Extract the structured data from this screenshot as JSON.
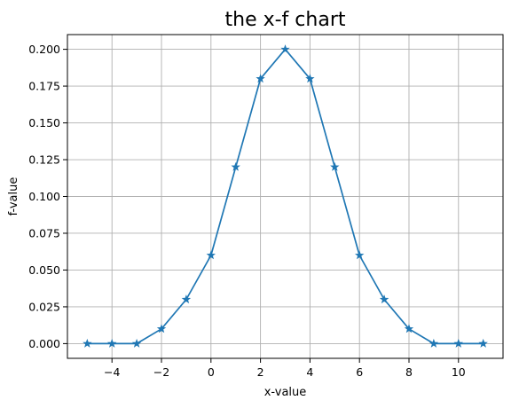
{
  "chart_data": {
    "type": "line",
    "title": "the x-f chart",
    "xlabel": "x-value",
    "ylabel": "f-value",
    "xlim": [
      -5.8,
      11.8
    ],
    "ylim": [
      -0.01,
      0.21
    ],
    "x_ticks": [
      -4,
      -2,
      0,
      2,
      4,
      6,
      8,
      10
    ],
    "x_tick_labels": [
      "−4",
      "−2",
      "0",
      "2",
      "4",
      "6",
      "8",
      "10"
    ],
    "y_ticks": [
      0.0,
      0.025,
      0.05,
      0.075,
      0.1,
      0.125,
      0.15,
      0.175,
      0.2
    ],
    "y_tick_labels": [
      "0.000",
      "0.025",
      "0.050",
      "0.075",
      "0.100",
      "0.125",
      "0.150",
      "0.175",
      "0.200"
    ],
    "grid": true,
    "marker": "star",
    "color": "#1f77b4",
    "series": [
      {
        "x": [
          -5,
          -4,
          -3,
          -2,
          -1,
          0,
          1,
          2,
          3,
          4,
          5,
          6,
          7,
          8,
          9,
          10,
          11
        ],
        "values": [
          0.0,
          0.0,
          0.0,
          0.01,
          0.03,
          0.06,
          0.12,
          0.18,
          0.2,
          0.18,
          0.12,
          0.06,
          0.03,
          0.01,
          0.0,
          0.0,
          0.0
        ]
      }
    ]
  }
}
